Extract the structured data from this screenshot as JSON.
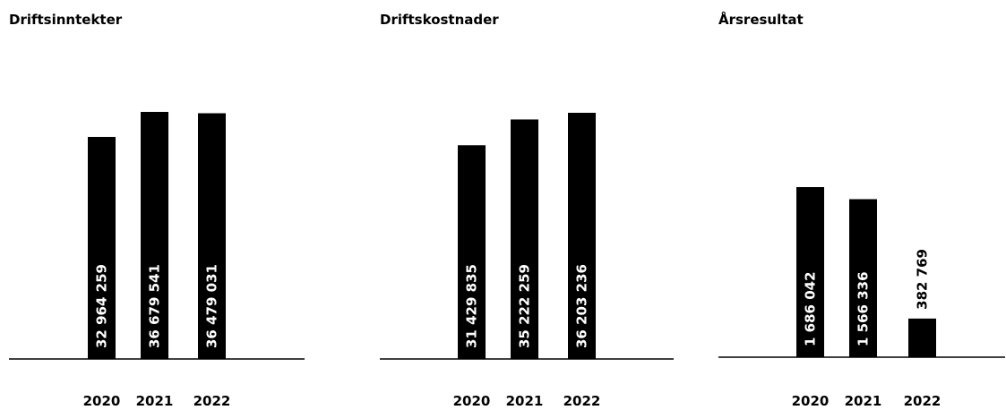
{
  "chart_data": [
    {
      "type": "bar",
      "title": "Driftsinntekter",
      "categories": [
        "2020",
        "2021",
        "2022"
      ],
      "values": [
        32964259,
        36679541,
        36479031
      ],
      "value_labels": [
        "32 964 259",
        "36 679 541",
        "36 479 031"
      ],
      "color": "#000000"
    },
    {
      "type": "bar",
      "title": "Driftskostnader",
      "categories": [
        "2020",
        "2021",
        "2022"
      ],
      "values": [
        31429835,
        35222259,
        36203236
      ],
      "value_labels": [
        "31 429 835",
        "35 222 259",
        "36 203 236"
      ],
      "color": "#000000"
    },
    {
      "type": "bar",
      "title": "Årsresultat",
      "categories": [
        "2020",
        "2021",
        "2022"
      ],
      "values": [
        1686042,
        1566336,
        382769
      ],
      "value_labels": [
        "1 686 042",
        "1 566 336",
        "382 769"
      ],
      "color": "#000000"
    }
  ]
}
